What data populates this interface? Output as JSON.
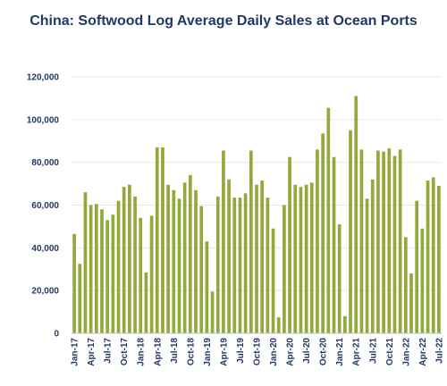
{
  "chart_data": {
    "type": "bar",
    "title": "China: Softwood Log Average Daily Sales at Ocean Ports",
    "xlabel": "",
    "ylabel": "",
    "ylim": [
      0,
      120000
    ],
    "yticks": [
      "0",
      "20,000",
      "40,000",
      "60,000",
      "80,000",
      "100,000",
      "120,000"
    ],
    "grid": true,
    "bar_color": "#93a93b",
    "text_color": "#1f3864",
    "categories": [
      "Jan-17",
      "Feb-17",
      "Mar-17",
      "Apr-17",
      "May-17",
      "Jun-17",
      "Jul-17",
      "Aug-17",
      "Sep-17",
      "Oct-17",
      "Nov-17",
      "Dec-17",
      "Jan-18",
      "Feb-18",
      "Mar-18",
      "Apr-18",
      "May-18",
      "Jun-18",
      "Jul-18",
      "Aug-18",
      "Sep-18",
      "Oct-18",
      "Nov-18",
      "Dec-18",
      "Jan-19",
      "Feb-19",
      "Mar-19",
      "Apr-19",
      "May-19",
      "Jun-19",
      "Jul-19",
      "Aug-19",
      "Sep-19",
      "Oct-19",
      "Nov-19",
      "Dec-19",
      "Jan-20",
      "Feb-20",
      "Mar-20",
      "Apr-20",
      "May-20",
      "Jun-20",
      "Jul-20",
      "Aug-20",
      "Sep-20",
      "Oct-20",
      "Nov-20",
      "Dec-20",
      "Jan-21",
      "Feb-21",
      "Mar-21",
      "Apr-21",
      "May-21",
      "Jun-21",
      "Jul-21",
      "Aug-21",
      "Sep-21",
      "Oct-21",
      "Nov-21",
      "Dec-21",
      "Jan-22",
      "Feb-22",
      "Mar-22",
      "Apr-22",
      "May-22",
      "Jun-22",
      "Jul-22"
    ],
    "xtick_labels": [
      "Jan-17",
      "Apr-17",
      "Jul-17",
      "Oct-17",
      "Jan-18",
      "Apr-18",
      "Jul-18",
      "Oct-18",
      "Jan-19",
      "Apr-19",
      "Jul-19",
      "Oct-19",
      "Jan-20",
      "Apr-20",
      "Jul-20",
      "Oct-20",
      "Jan-21",
      "Apr-21",
      "Jul-21",
      "Oct-21",
      "Jan-22",
      "Apr-22",
      "Jul-22"
    ],
    "values": [
      46500,
      32500,
      66000,
      60000,
      60500,
      58000,
      53000,
      55500,
      62000,
      68500,
      69500,
      64000,
      54000,
      28500,
      55000,
      87000,
      87000,
      69500,
      67000,
      63000,
      70500,
      74000,
      67000,
      59500,
      43000,
      19500,
      64000,
      85500,
      72000,
      63500,
      63500,
      65500,
      85500,
      69500,
      71500,
      63500,
      49000,
      7500,
      60000,
      82500,
      69500,
      68500,
      69500,
      70500,
      86000,
      93500,
      105500,
      82500,
      51000,
      8000,
      95000,
      111000,
      86000,
      63000,
      72000,
      85500,
      85000,
      86500,
      83000,
      86000,
      45000,
      28000,
      62000,
      49000,
      71500,
      73000,
      69000
    ]
  }
}
